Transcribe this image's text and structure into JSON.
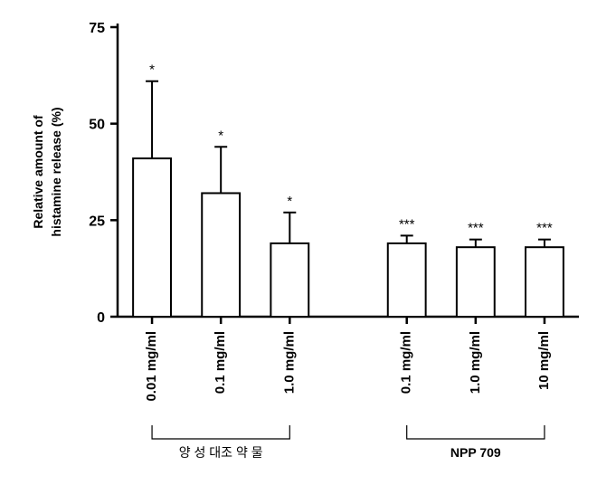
{
  "chart": {
    "type": "bar",
    "ylabel_line1": "Relative amount of",
    "ylabel_line2": "histamine release (%)",
    "ylabel_fontsize": 14,
    "ylim": [
      0,
      75
    ],
    "ytick_step": 25,
    "yticks": [
      0,
      25,
      50,
      75
    ],
    "background_color": "#ffffff",
    "axis_color": "#000000",
    "axis_width": 2.5,
    "tick_length": 8,
    "bar_fill": "#ffffff",
    "bar_stroke": "#000000",
    "bar_stroke_width": 2,
    "bar_width_ratio": 0.55,
    "error_cap_width": 14,
    "error_line_width": 2,
    "bars": [
      {
        "label": "0.01 mg/ml",
        "value": 41,
        "err": 20,
        "sig": "*",
        "group": 0
      },
      {
        "label": "0.1 mg/ml",
        "value": 32,
        "err": 12,
        "sig": "*",
        "group": 0
      },
      {
        "label": "1.0 mg/ml",
        "value": 19,
        "err": 8,
        "sig": "*",
        "group": 0
      },
      {
        "label": "0.1 mg/ml",
        "value": 19,
        "err": 2,
        "sig": "***",
        "group": 1
      },
      {
        "label": "1.0 mg/ml",
        "value": 18,
        "err": 2,
        "sig": "***",
        "group": 1
      },
      {
        "label": "10 mg/ml",
        "value": 18,
        "err": 2,
        "sig": "***",
        "group": 1
      }
    ],
    "groups": [
      {
        "label": "양 성 대조 약 물",
        "from": 0,
        "to": 2
      },
      {
        "label": "NPP 709",
        "from": 3,
        "to": 5
      }
    ],
    "group_label_fontsize": 14,
    "category_fontsize": 15,
    "sig_fontsize": 15,
    "tick_fontsize": 16,
    "bracket_color": "#000000",
    "bracket_width": 1.2,
    "group_gap_slots": 0.7
  }
}
